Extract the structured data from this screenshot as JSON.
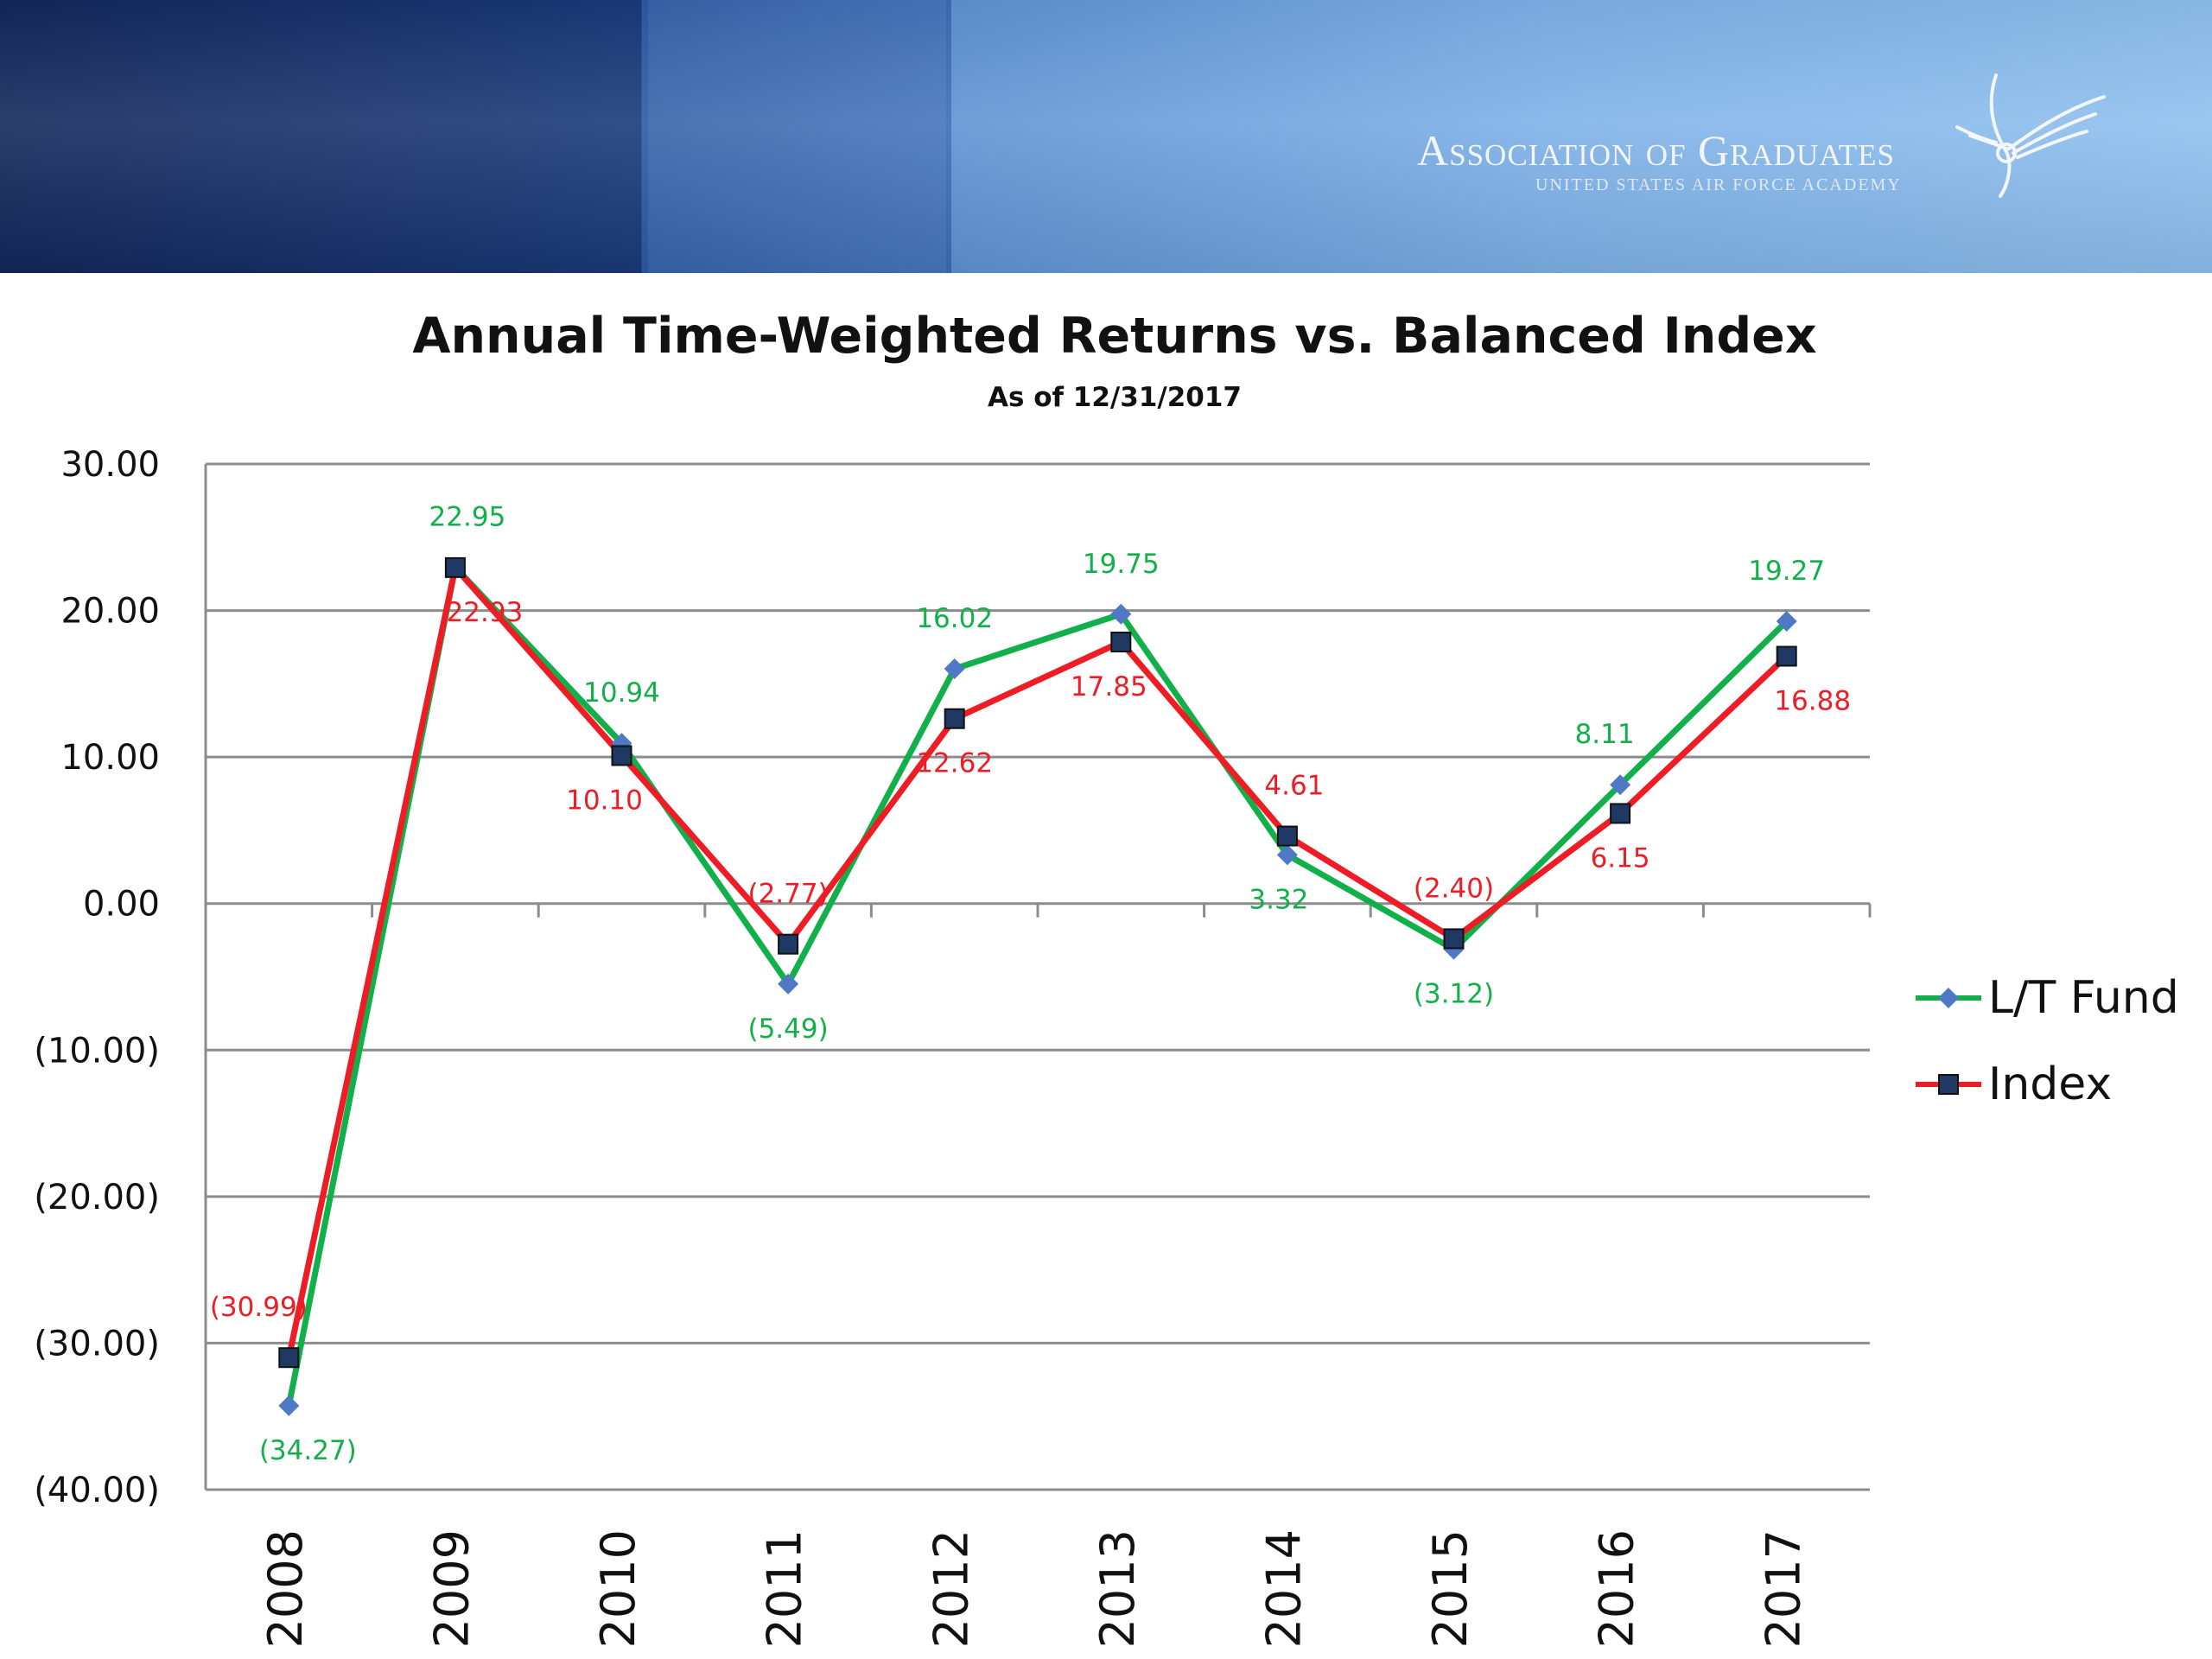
{
  "header": {
    "org_name": "Association of Graduates",
    "org_sub": "UNITED STATES AIR FORCE ACADEMY",
    "logo_icon": "wings-icon"
  },
  "chart_data": {
    "type": "line",
    "title": "Annual Time-Weighted Returns vs. Balanced Index",
    "subtitle": "As of 12/31/2017",
    "categories": [
      "2008",
      "2009",
      "2010",
      "2011",
      "2012",
      "2013",
      "2014",
      "2015",
      "2016",
      "2017"
    ],
    "ylim": [
      -40,
      30
    ],
    "y_ticks": [
      30,
      20,
      10,
      0,
      -10,
      -20,
      -30,
      -40
    ],
    "y_tick_labels": [
      "30.00",
      "20.00",
      "10.00",
      "0.00",
      "(10.00)",
      "(20.00)",
      "(30.00)",
      "(40.00)"
    ],
    "grid": true,
    "legend_position": "right",
    "series": [
      {
        "name": "L/T Fund",
        "values": [
          -34.27,
          22.95,
          10.94,
          -5.49,
          16.02,
          19.75,
          3.32,
          -3.12,
          8.11,
          19.27
        ],
        "labels": [
          "(34.27)",
          "22.95",
          "10.94",
          "(5.49)",
          "16.02",
          "19.75",
          "3.32",
          "(3.12)",
          "8.11",
          "19.27"
        ],
        "line_color": "#12b04a",
        "marker_color": "#4f79c4",
        "label_color": "#12b04a",
        "marker": "diamond"
      },
      {
        "name": "Index",
        "values": [
          -30.99,
          22.93,
          10.1,
          -2.77,
          12.62,
          17.85,
          4.61,
          -2.4,
          6.15,
          16.88
        ],
        "labels": [
          "(30.99)",
          "22.93",
          "10.10",
          "(2.77)",
          "12.62",
          "17.85",
          "4.61",
          "(2.40)",
          "6.15",
          "16.88"
        ],
        "line_color": "#ee1c25",
        "marker_color": "#1f3864",
        "label_color": "#ee1c25",
        "marker": "square"
      }
    ]
  }
}
